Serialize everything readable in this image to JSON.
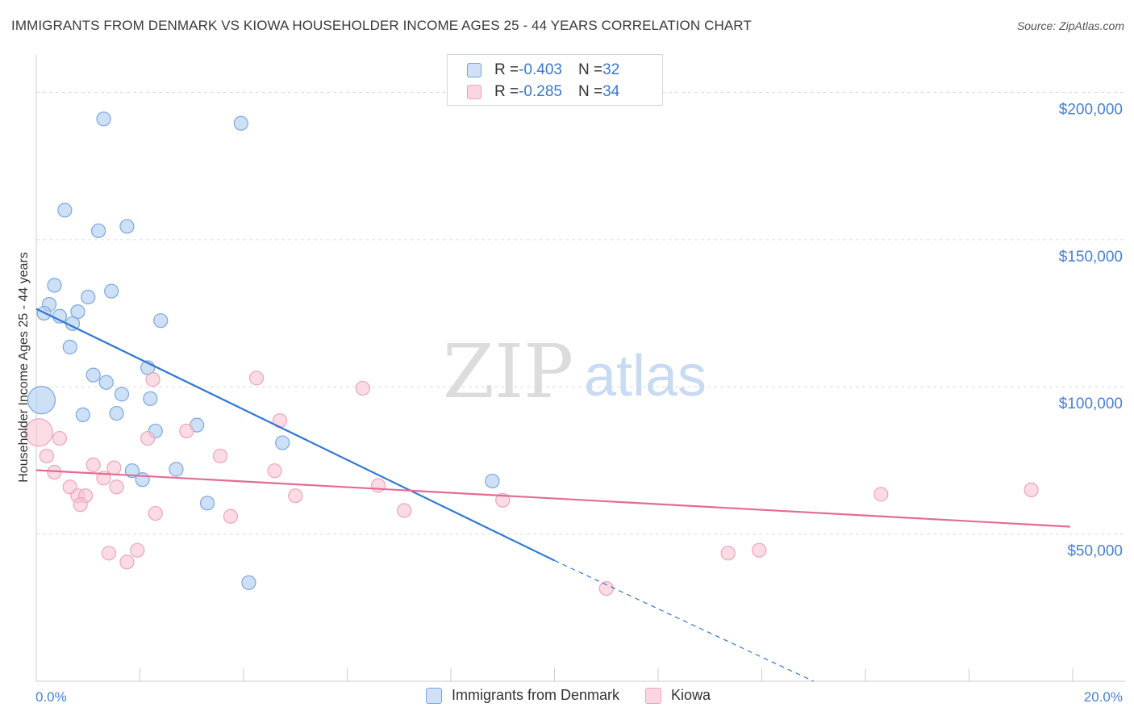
{
  "title": "IMMIGRANTS FROM DENMARK VS KIOWA HOUSEHOLDER INCOME AGES 25 - 44 YEARS CORRELATION CHART",
  "source": "Source: ZipAtlas.com",
  "watermark": {
    "zip": "ZIP",
    "atlas": "atlas"
  },
  "legend_top": [
    {
      "r_label": "R = ",
      "r_value": "-0.403",
      "n_label": "N = ",
      "n_value": "32",
      "color": "#aeccf0"
    },
    {
      "r_label": "R = ",
      "r_value": "-0.285",
      "n_label": "N = ",
      "n_value": "34",
      "color": "#f8c5d3"
    }
  ],
  "chart_data": {
    "type": "scatter",
    "xlabel": "",
    "ylabel": "Householder Income Ages 25 - 44 years",
    "xlim": [
      0,
      20
    ],
    "ylim": [
      0,
      210000
    ],
    "x_tick_labels": [
      "0.0%",
      "20.0%"
    ],
    "y_ticks": [
      {
        "value": 50000,
        "label": "$50,000"
      },
      {
        "value": 100000,
        "label": "$100,000"
      },
      {
        "value": 150000,
        "label": "$150,000"
      },
      {
        "value": 200000,
        "label": "$200,000"
      }
    ],
    "grid": "horizontal dashed",
    "colors": {
      "denmark_fill": "#aeccf0",
      "denmark_line": "#2f78d3",
      "kiowa_fill": "#f8c5d3",
      "kiowa_line": "#e36b95"
    },
    "series": [
      {
        "name": "Immigrants from Denmark",
        "points": [
          {
            "x": 1.3,
            "y": 191000
          },
          {
            "x": 3.95,
            "y": 189500
          },
          {
            "x": 0.55,
            "y": 160000
          },
          {
            "x": 1.2,
            "y": 153000
          },
          {
            "x": 1.75,
            "y": 154500
          },
          {
            "x": 0.35,
            "y": 134500
          },
          {
            "x": 1.45,
            "y": 132500
          },
          {
            "x": 1.0,
            "y": 130500
          },
          {
            "x": 0.25,
            "y": 128000
          },
          {
            "x": 0.15,
            "y": 125000
          },
          {
            "x": 0.45,
            "y": 124000
          },
          {
            "x": 0.8,
            "y": 125500
          },
          {
            "x": 0.7,
            "y": 121500
          },
          {
            "x": 2.4,
            "y": 122500
          },
          {
            "x": 0.65,
            "y": 113500
          },
          {
            "x": 2.15,
            "y": 106500
          },
          {
            "x": 1.1,
            "y": 104000
          },
          {
            "x": 1.35,
            "y": 101500
          },
          {
            "x": 0.1,
            "y": 95500,
            "large": true
          },
          {
            "x": 1.65,
            "y": 97500
          },
          {
            "x": 2.2,
            "y": 96000
          },
          {
            "x": 0.9,
            "y": 90500
          },
          {
            "x": 1.55,
            "y": 91000
          },
          {
            "x": 3.1,
            "y": 87000
          },
          {
            "x": 2.3,
            "y": 85000
          },
          {
            "x": 4.75,
            "y": 81000
          },
          {
            "x": 1.85,
            "y": 71500
          },
          {
            "x": 2.05,
            "y": 68500
          },
          {
            "x": 2.7,
            "y": 72000
          },
          {
            "x": 8.8,
            "y": 68000
          },
          {
            "x": 3.3,
            "y": 60500
          },
          {
            "x": 4.1,
            "y": 33500
          }
        ],
        "trend": {
          "x0": 0.0,
          "y0": 126500,
          "x1": 10.0,
          "y1": 41000,
          "dash_to_x": 15.0,
          "dash_to_y": 0
        }
      },
      {
        "name": "Kiowa",
        "points": [
          {
            "x": 0.05,
            "y": 84500,
            "large": true
          },
          {
            "x": 0.45,
            "y": 82500
          },
          {
            "x": 0.2,
            "y": 76500
          },
          {
            "x": 0.35,
            "y": 71000
          },
          {
            "x": 1.1,
            "y": 73500
          },
          {
            "x": 1.5,
            "y": 72500
          },
          {
            "x": 0.65,
            "y": 66000
          },
          {
            "x": 1.3,
            "y": 69000
          },
          {
            "x": 1.55,
            "y": 66000
          },
          {
            "x": 0.8,
            "y": 63000
          },
          {
            "x": 0.95,
            "y": 63000
          },
          {
            "x": 0.85,
            "y": 60000
          },
          {
            "x": 2.25,
            "y": 102500
          },
          {
            "x": 2.15,
            "y": 82500
          },
          {
            "x": 2.9,
            "y": 85000
          },
          {
            "x": 3.55,
            "y": 76500
          },
          {
            "x": 4.25,
            "y": 103000
          },
          {
            "x": 4.7,
            "y": 88500
          },
          {
            "x": 4.6,
            "y": 71500
          },
          {
            "x": 5.0,
            "y": 63000
          },
          {
            "x": 3.75,
            "y": 56000
          },
          {
            "x": 2.3,
            "y": 57000
          },
          {
            "x": 6.3,
            "y": 99500
          },
          {
            "x": 6.6,
            "y": 66500
          },
          {
            "x": 7.1,
            "y": 58000
          },
          {
            "x": 9.0,
            "y": 61500
          },
          {
            "x": 1.4,
            "y": 43500
          },
          {
            "x": 1.95,
            "y": 44500
          },
          {
            "x": 1.75,
            "y": 40500
          },
          {
            "x": 11.0,
            "y": 31500
          },
          {
            "x": 13.35,
            "y": 43500
          },
          {
            "x": 13.95,
            "y": 44500
          },
          {
            "x": 16.3,
            "y": 63500
          },
          {
            "x": 19.2,
            "y": 65000
          }
        ],
        "trend": {
          "x0": 0.0,
          "y0": 71700,
          "x1": 19.95,
          "y1": 52500
        }
      }
    ]
  }
}
